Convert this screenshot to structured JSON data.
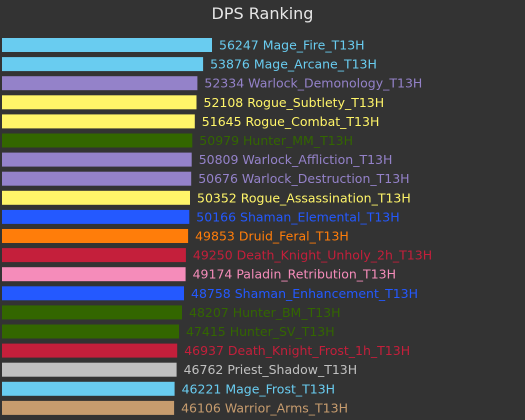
{
  "chart_data": {
    "type": "bar",
    "orientation": "horizontal",
    "title": "DPS  Ranking",
    "xlim": [
      0,
      56247
    ],
    "grid": false,
    "bars": [
      {
        "value": 56247,
        "label": "Mage_Fire_T13H",
        "color": "#69ccf0"
      },
      {
        "value": 53876,
        "label": "Mage_Arcane_T13H",
        "color": "#69ccf0"
      },
      {
        "value": 52334,
        "label": "Warlock_Demonology_T13H",
        "color": "#9482c9"
      },
      {
        "value": 52108,
        "label": "Rogue_Subtlety_T13H",
        "color": "#fff569"
      },
      {
        "value": 51645,
        "label": "Rogue_Combat_T13H",
        "color": "#fff569"
      },
      {
        "value": 50979,
        "label": "Hunter_MM_T13H",
        "color": "#336600"
      },
      {
        "value": 50809,
        "label": "Warlock_Affliction_T13H",
        "color": "#9482c9"
      },
      {
        "value": 50676,
        "label": "Warlock_Destruction_T13H",
        "color": "#9482c9"
      },
      {
        "value": 50352,
        "label": "Rogue_Assassination_T13H",
        "color": "#fff569"
      },
      {
        "value": 50166,
        "label": "Shaman_Elemental_T13H",
        "color": "#2459ff"
      },
      {
        "value": 49853,
        "label": "Druid_Feral_T13H",
        "color": "#ff7d0a"
      },
      {
        "value": 49250,
        "label": "Death_Knight_Unholy_2h_T13H",
        "color": "#c41f3b"
      },
      {
        "value": 49174,
        "label": "Paladin_Retribution_T13H",
        "color": "#f58cba"
      },
      {
        "value": 48758,
        "label": "Shaman_Enhancement_T13H",
        "color": "#2459ff"
      },
      {
        "value": 48207,
        "label": "Hunter_BM_T13H",
        "color": "#336600"
      },
      {
        "value": 47415,
        "label": "Hunter_SV_T13H",
        "color": "#336600"
      },
      {
        "value": 46937,
        "label": "Death_Knight_Frost_1h_T13H",
        "color": "#c41f3b"
      },
      {
        "value": 46762,
        "label": "Priest_Shadow_T13H",
        "color": "#c0c0c0"
      },
      {
        "value": 46221,
        "label": "Mage_Frost_T13H",
        "color": "#69ccf0"
      },
      {
        "value": 46106,
        "label": "Warrior_Arms_T13H",
        "color": "#c79c6e"
      }
    ]
  }
}
